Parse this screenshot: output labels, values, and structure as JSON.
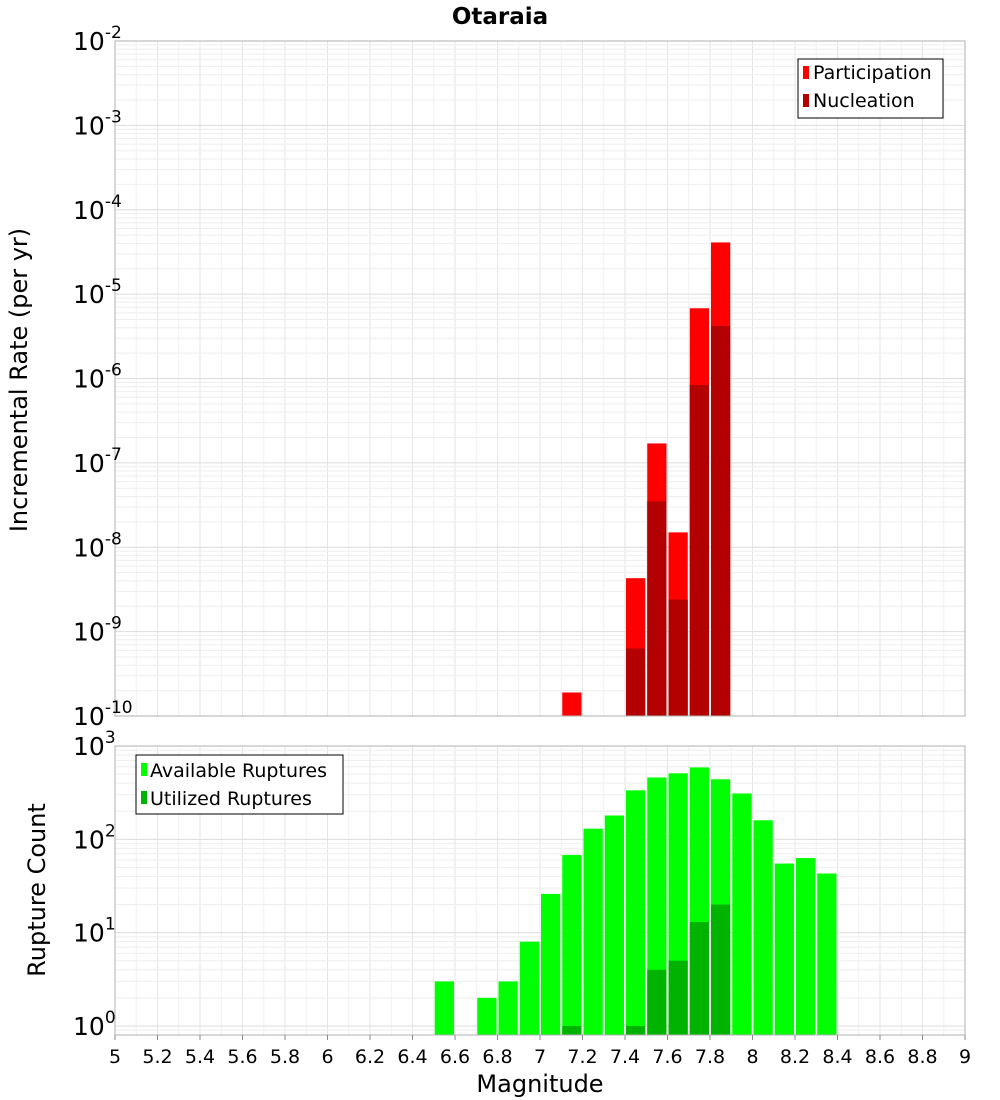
{
  "title": "Otaraia",
  "x_axis_label": "Magnitude",
  "chart_data": [
    {
      "type": "bar",
      "panel": "top",
      "title": "Otaraia",
      "ylabel": "Incremental Rate (per yr)",
      "yscale": "log",
      "ylim": [
        1e-10,
        0.01
      ],
      "xlim": [
        5,
        9
      ],
      "bin_width": 0.1,
      "grid": true,
      "legend_position": "top-right",
      "y_tick_labels": [
        {
          "base": "10",
          "exp": "-10"
        },
        {
          "base": "10",
          "exp": "-9"
        },
        {
          "base": "10",
          "exp": "-8"
        },
        {
          "base": "10",
          "exp": "-7"
        },
        {
          "base": "10",
          "exp": "-6"
        },
        {
          "base": "10",
          "exp": "-5"
        },
        {
          "base": "10",
          "exp": "-4"
        },
        {
          "base": "10",
          "exp": "-3"
        },
        {
          "base": "10",
          "exp": "-2"
        }
      ],
      "series": [
        {
          "name": "Participation",
          "color": "#ff0000",
          "points": [
            [
              7.15,
              1.9e-10
            ],
            [
              7.45,
              4.3e-09
            ],
            [
              7.55,
              1.7e-07
            ],
            [
              7.65,
              1.5e-08
            ],
            [
              7.75,
              6.8e-06
            ],
            [
              7.85,
              4.1e-05
            ]
          ]
        },
        {
          "name": "Nucleation",
          "color": "#b30000",
          "points": [
            [
              7.45,
              6.3e-10
            ],
            [
              7.55,
              3.5e-08
            ],
            [
              7.65,
              2.4e-09
            ],
            [
              7.75,
              8.4e-07
            ],
            [
              7.85,
              4.2e-06
            ]
          ]
        }
      ]
    },
    {
      "type": "bar",
      "panel": "bottom",
      "ylabel": "Rupture Count",
      "yscale": "log",
      "ylim": [
        0.8,
        1000
      ],
      "xlim": [
        5,
        9
      ],
      "bin_width": 0.1,
      "grid": true,
      "legend_position": "top-left",
      "y_tick_labels": [
        {
          "base": "10",
          "exp": "0"
        },
        {
          "base": "10",
          "exp": "1"
        },
        {
          "base": "10",
          "exp": "2"
        },
        {
          "base": "10",
          "exp": "3"
        }
      ],
      "series": [
        {
          "name": "Available Ruptures",
          "color": "#00ff00",
          "points": [
            [
              6.55,
              3
            ],
            [
              6.75,
              2
            ],
            [
              6.85,
              3
            ],
            [
              6.95,
              8
            ],
            [
              7.05,
              26
            ],
            [
              7.15,
              68
            ],
            [
              7.25,
              130
            ],
            [
              7.35,
              180
            ],
            [
              7.45,
              335
            ],
            [
              7.55,
              460
            ],
            [
              7.65,
              510
            ],
            [
              7.75,
              590
            ],
            [
              7.85,
              440
            ],
            [
              7.95,
              310
            ],
            [
              8.05,
              160
            ],
            [
              8.15,
              55
            ],
            [
              8.25,
              63
            ],
            [
              8.35,
              43
            ]
          ]
        },
        {
          "name": "Utilized Ruptures",
          "color": "#00b300",
          "points": [
            [
              7.15,
              1
            ],
            [
              7.45,
              1
            ],
            [
              7.55,
              4
            ],
            [
              7.65,
              5
            ],
            [
              7.75,
              13
            ],
            [
              7.85,
              20
            ]
          ]
        }
      ]
    }
  ],
  "x_ticks": [
    "5",
    "5.2",
    "5.4",
    "5.6",
    "5.8",
    "6",
    "6.2",
    "6.4",
    "6.6",
    "6.8",
    "7",
    "7.2",
    "7.4",
    "7.6",
    "7.8",
    "8",
    "8.2",
    "8.4",
    "8.6",
    "8.8",
    "9"
  ]
}
